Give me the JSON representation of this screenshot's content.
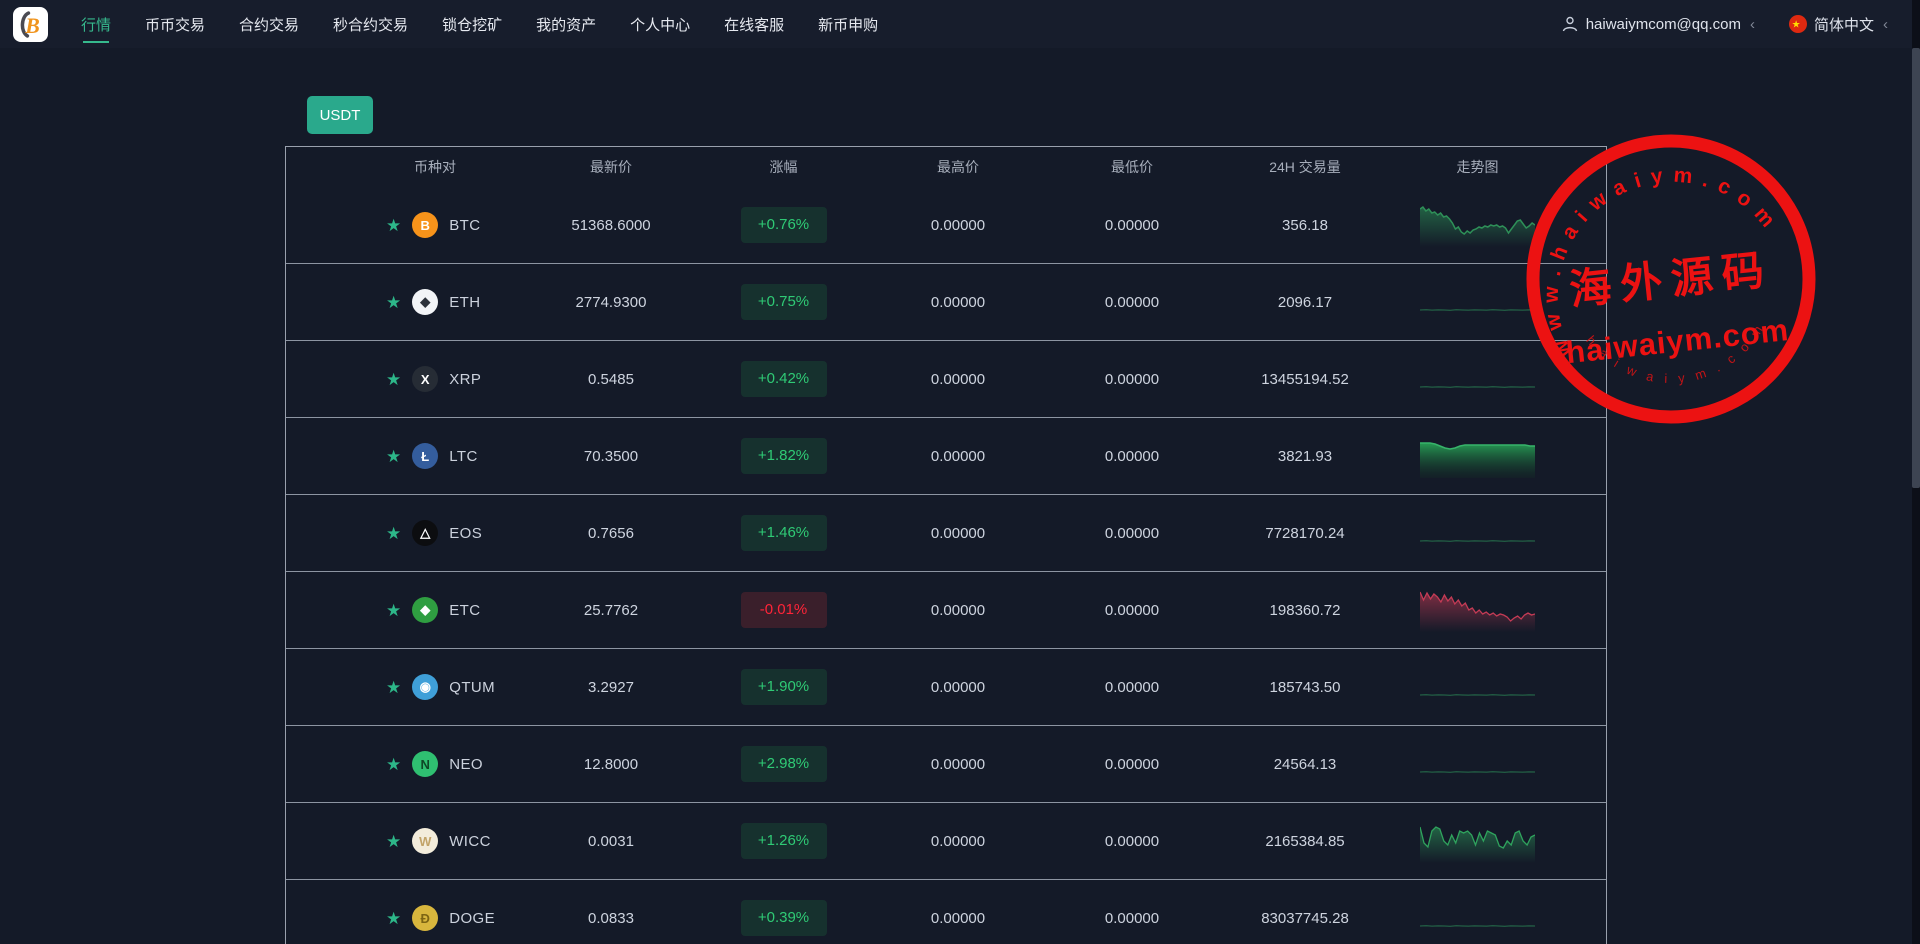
{
  "nav": {
    "items": [
      {
        "id": "market",
        "label": "行情",
        "active": true
      },
      {
        "id": "spot-trade",
        "label": "币币交易",
        "active": false
      },
      {
        "id": "contract-trade",
        "label": "合约交易",
        "active": false
      },
      {
        "id": "second-contract",
        "label": "秒合约交易",
        "active": false
      },
      {
        "id": "lock-mining",
        "label": "锁仓挖矿",
        "active": false
      },
      {
        "id": "my-assets",
        "label": "我的资产",
        "active": false
      },
      {
        "id": "user-center",
        "label": "个人中心",
        "active": false
      },
      {
        "id": "online-support",
        "label": "在线客服",
        "active": false
      },
      {
        "id": "new-coin",
        "label": "新币申购",
        "active": false
      }
    ],
    "user_email": "haiwaiymcom@qq.com",
    "language": "简体中文",
    "chevron": "‹"
  },
  "filters": {
    "usdt_tab": "USDT"
  },
  "table": {
    "columns": [
      "币种对",
      "最新价",
      "涨幅",
      "最高价",
      "最低价",
      "24H 交易量",
      "走势图"
    ],
    "rows": [
      {
        "symbol": "BTC",
        "price": "51368.6000",
        "change": "+0.76%",
        "dir": "up",
        "high": "0.00000",
        "low": "0.00000",
        "volume": "356.18",
        "spark": "btc",
        "icon": {
          "bg": "#f7931a",
          "fg": "#ffffff",
          "glyph": "B"
        }
      },
      {
        "symbol": "ETH",
        "price": "2774.9300",
        "change": "+0.75%",
        "dir": "up",
        "high": "0.00000",
        "low": "0.00000",
        "volume": "2096.17",
        "spark": "flat",
        "icon": {
          "bg": "#f2f4f7",
          "fg": "#2c313a",
          "glyph": "◆"
        }
      },
      {
        "symbol": "XRP",
        "price": "0.5485",
        "change": "+0.42%",
        "dir": "up",
        "high": "0.00000",
        "low": "0.00000",
        "volume": "13455194.52",
        "spark": "flat",
        "icon": {
          "bg": "#262c35",
          "fg": "#ffffff",
          "glyph": "X"
        }
      },
      {
        "symbol": "LTC",
        "price": "70.3500",
        "change": "+1.82%",
        "dir": "up",
        "high": "0.00000",
        "low": "0.00000",
        "volume": "3821.93",
        "spark": "ltc",
        "icon": {
          "bg": "#345d9d",
          "fg": "#ffffff",
          "glyph": "Ł"
        }
      },
      {
        "symbol": "EOS",
        "price": "0.7656",
        "change": "+1.46%",
        "dir": "up",
        "high": "0.00000",
        "low": "0.00000",
        "volume": "7728170.24",
        "spark": "flat",
        "icon": {
          "bg": "#0c0d10",
          "fg": "#ffffff",
          "glyph": "△"
        }
      },
      {
        "symbol": "ETC",
        "price": "25.7762",
        "change": "-0.01%",
        "dir": "down",
        "high": "0.00000",
        "low": "0.00000",
        "volume": "198360.72",
        "spark": "etc",
        "icon": {
          "bg": "#2f9e41",
          "fg": "#ffffff",
          "glyph": "◆"
        }
      },
      {
        "symbol": "QTUM",
        "price": "3.2927",
        "change": "+1.90%",
        "dir": "up",
        "high": "0.00000",
        "low": "0.00000",
        "volume": "185743.50",
        "spark": "flat",
        "icon": {
          "bg": "#3f9fd8",
          "fg": "#ffffff",
          "glyph": "◉"
        }
      },
      {
        "symbol": "NEO",
        "price": "12.8000",
        "change": "+2.98%",
        "dir": "up",
        "high": "0.00000",
        "low": "0.00000",
        "volume": "24564.13",
        "spark": "flat",
        "icon": {
          "bg": "#2fbf71",
          "fg": "#0e4626",
          "glyph": "N"
        }
      },
      {
        "symbol": "WICC",
        "price": "0.0031",
        "change": "+1.26%",
        "dir": "up",
        "high": "0.00000",
        "low": "0.00000",
        "volume": "2165384.85",
        "spark": "wicc",
        "icon": {
          "bg": "#f3ecdb",
          "fg": "#c2a368",
          "glyph": "W"
        }
      },
      {
        "symbol": "DOGE",
        "price": "0.0833",
        "change": "+0.39%",
        "dir": "up",
        "high": "0.00000",
        "low": "0.00000",
        "volume": "83037745.28",
        "spark": "flat",
        "icon": {
          "bg": "#d8b63d",
          "fg": "#7c6413",
          "glyph": "Đ"
        }
      }
    ]
  },
  "watermark": {
    "arc_top": "w w w . h a i w a i y m . c o m",
    "title_cn": "海外源码",
    "domain": "haiwaiym.com",
    "arc_bottom": "h a i w a i y m . c o m",
    "color": "#ec1212"
  },
  "chart_data": {
    "type": "line",
    "note": "24h mini trend sparklines per row; y values normalized 0(top)-44(bottom) of sparkline box, x evenly spaced",
    "sparklines": {
      "btc": {
        "color": "#2e9058",
        "fill": "green",
        "w": 1.5,
        "values": [
          6,
          4,
          8,
          6,
          10,
          9,
          12,
          10,
          14,
          13,
          16,
          20,
          26,
          24,
          29,
          31,
          28,
          30,
          27,
          26,
          24,
          25,
          23,
          24,
          22,
          23,
          22,
          24,
          23,
          25,
          30,
          26,
          22,
          18,
          17,
          21,
          25,
          23,
          20,
          22
        ]
      },
      "flat": {
        "color": "#2f9e5f",
        "fill": "none",
        "w": 1,
        "o": 0.65,
        "values": [
          30,
          29.7,
          30.1,
          29.9,
          30,
          30.2,
          29.8,
          30,
          30.1,
          29.9,
          30,
          30.1,
          29.8,
          30,
          30.2,
          29.9,
          30,
          30.1,
          29.9,
          30
        ]
      },
      "ltc": {
        "color": "#37b46a",
        "fill": "greenStrong",
        "w": 1.5,
        "values": [
          9,
          9,
          9,
          10,
          12,
          14,
          15,
          14,
          12,
          11,
          11,
          11,
          11,
          11,
          11,
          11,
          11,
          11,
          11,
          11,
          11,
          11,
          12,
          12
        ]
      },
      "etc": {
        "color": "#c43b55",
        "fill": "red",
        "w": 1.3,
        "values": [
          4,
          12,
          5,
          11,
          6,
          9,
          14,
          7,
          13,
          9,
          16,
          12,
          18,
          15,
          22,
          20,
          25,
          22,
          26,
          24,
          27,
          25,
          28,
          26,
          27,
          29,
          33,
          30,
          28,
          31,
          27,
          25,
          27,
          26
        ]
      },
      "wicc": {
        "color": "#2fa35d",
        "fill": "green",
        "w": 1.3,
        "values": [
          8,
          24,
          28,
          12,
          8,
          10,
          22,
          26,
          16,
          24,
          12,
          14,
          12,
          16,
          26,
          14,
          22,
          12,
          14,
          16,
          27,
          29,
          22,
          26,
          14,
          12,
          22,
          26,
          18,
          16
        ]
      }
    }
  }
}
